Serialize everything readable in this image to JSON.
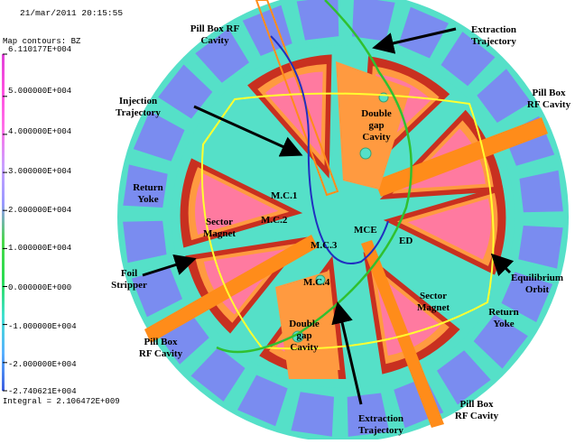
{
  "header": {
    "timestamp": "21/mar/2011 20:15:55",
    "map_title": "Map contours: BZ"
  },
  "colorbar": {
    "ticks": [
      "6.110177E+004",
      "5.000000E+004",
      "4.000000E+004",
      "3.000000E+004",
      "2.000000E+004",
      "1.000000E+004",
      "0.000000E+000",
      "-1.000000E+004",
      "-2.000000E+004",
      "-2.740621E+004"
    ],
    "tick_values": [
      61101.77,
      50000,
      40000,
      30000,
      20000,
      10000,
      0,
      -10000,
      -20000,
      -27406.21
    ],
    "integral": "Integral = 2.106472E+009",
    "colors": [
      "#e040d8",
      "#ff50e0",
      "#ff70e8",
      "#c8a0ff",
      "#9898ff",
      "#4ad84a",
      "#2adc50",
      "#40e0d0",
      "#58b0ff",
      "#3c5ce0"
    ]
  },
  "annotations": {
    "pill_box_top": "Pill Box RF\nCavity",
    "extraction_top": "Extraction\nTrajectory",
    "injection": "Injection\nTrajectory",
    "pill_box_right": "Pill Box\nRF Cavity",
    "double_gap_top": "Double\ngap\nCavity",
    "return_yoke_left": "Return\nYoke",
    "sector_magnet_left": "Sector\nMagnet",
    "foil_stripper": "Foil\nStripper",
    "equilibrium_orbit": "Equilibrium\nOrbit",
    "sector_magnet_right": "Sector\nMagnet",
    "return_yoke_right": "Return\nYoke",
    "pill_box_left": "Pill Box\nRF Cavity",
    "double_gap_bottom": "Double\ngap\nCavity",
    "extraction_bottom": "Extraction\nTrajectory",
    "pill_box_bottom": "Pill Box\nRF Cavity",
    "mc1": "M.C.1",
    "mc2": "M.C.2",
    "mc3": "M.C.3",
    "mc4": "M.C.4",
    "mce": "MCE",
    "ed": "ED"
  },
  "colors": {
    "background": "#ffffff",
    "field_aqua": "#55e0c8",
    "yoke_blue": "#7a8cf0",
    "magnet_red": "#c83020",
    "magnet_orange": "#ff9a40",
    "magnet_pink": "#ff7aa0",
    "cavity_orange": "#ff8c1a",
    "orbit_yellow": "#ffff30",
    "trajectory_green": "#30c030",
    "trajectory_blue": "#2030c0",
    "arrow": "#000000"
  }
}
